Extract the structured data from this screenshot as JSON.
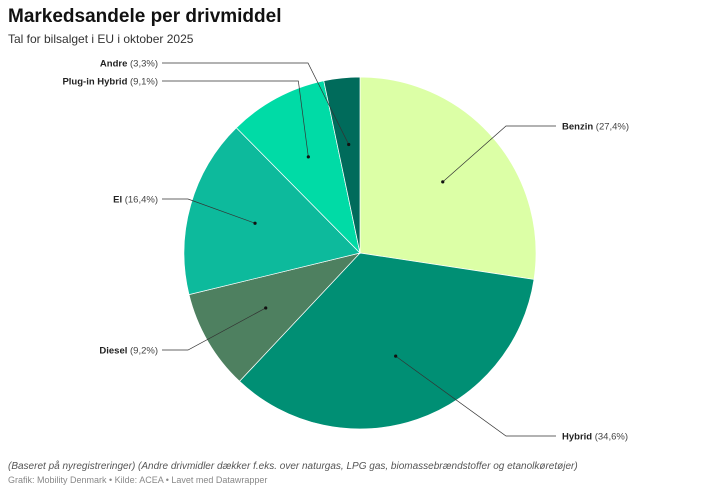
{
  "chart_data": {
    "type": "pie",
    "title": "Markedsandele per drivmiddel",
    "subtitle": "Tal for bilsalget i EU i oktober 2025",
    "slices": [
      {
        "label": "Benzin",
        "value": 27.4,
        "display": "(27,4%)",
        "color": "#dcffa6",
        "side": "right"
      },
      {
        "label": "Hybrid",
        "value": 34.6,
        "display": "(34,6%)",
        "color": "#008f74",
        "side": "right"
      },
      {
        "label": "Diesel",
        "value": 9.2,
        "display": "(9,2%)",
        "color": "#4e8060",
        "side": "left"
      },
      {
        "label": "El",
        "value": 16.4,
        "display": "(16,4%)",
        "color": "#0dba9c",
        "side": "left"
      },
      {
        "label": "Plug-in Hybrid",
        "value": 9.1,
        "display": "(9,1%)",
        "color": "#00dba6",
        "side": "left"
      },
      {
        "label": "Andre",
        "value": 3.3,
        "display": "(3,3%)",
        "color": "#006b5b",
        "side": "left"
      }
    ],
    "start": "top",
    "direction": "clockwise"
  },
  "footer": {
    "note": "(Baseret på nyregistreringer) (Andre drivmidler dækker f.eks. over naturgas, LPG gas, biomassebrændstoffer og etanolkøretøjer)",
    "credits": "Grafik: Mobility Denmark • Kilde: ACEA • Lavet med Datawrapper"
  }
}
